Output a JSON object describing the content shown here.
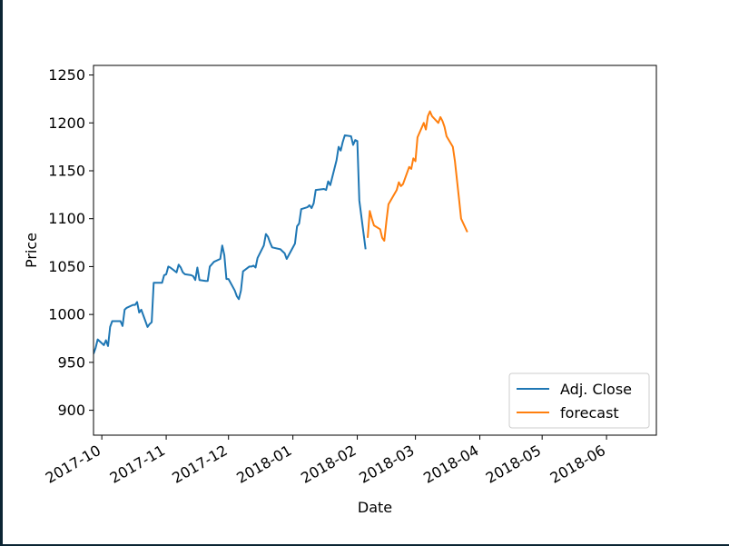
{
  "chart_data": {
    "type": "line",
    "xlabel": "Date",
    "ylabel": "Price",
    "ylim": [
      874,
      1260
    ],
    "xlim": [
      "2017-09-27",
      "2018-06-25"
    ],
    "grid": false,
    "legend_position": "lower right",
    "y_ticks": [
      900,
      950,
      1000,
      1050,
      1100,
      1150,
      1200,
      1250
    ],
    "x_ticks": [
      "2017-10",
      "2017-11",
      "2017-12",
      "2018-01",
      "2018-02",
      "2018-03",
      "2018-04",
      "2018-05",
      "2018-06"
    ],
    "x_tick_dates": [
      "2017-10-01",
      "2017-11-01",
      "2017-12-01",
      "2018-01-01",
      "2018-02-01",
      "2018-03-01",
      "2018-04-01",
      "2018-05-01",
      "2018-06-01"
    ],
    "series": [
      {
        "name": "Adj. Close",
        "color": "#1f77b4",
        "x": [
          "2017-09-27",
          "2017-09-28",
          "2017-09-29",
          "2017-10-02",
          "2017-10-03",
          "2017-10-04",
          "2017-10-05",
          "2017-10-06",
          "2017-10-09",
          "2017-10-10",
          "2017-10-11",
          "2017-10-12",
          "2017-10-13",
          "2017-10-16",
          "2017-10-17",
          "2017-10-18",
          "2017-10-19",
          "2017-10-20",
          "2017-10-23",
          "2017-10-24",
          "2017-10-25",
          "2017-10-26",
          "2017-10-27",
          "2017-10-30",
          "2017-10-31",
          "2017-11-01",
          "2017-11-02",
          "2017-11-03",
          "2017-11-06",
          "2017-11-07",
          "2017-11-08",
          "2017-11-09",
          "2017-11-10",
          "2017-11-13",
          "2017-11-14",
          "2017-11-15",
          "2017-11-16",
          "2017-11-17",
          "2017-11-20",
          "2017-11-21",
          "2017-11-22",
          "2017-11-24",
          "2017-11-27",
          "2017-11-28",
          "2017-11-29",
          "2017-11-30",
          "2017-12-01",
          "2017-12-04",
          "2017-12-05",
          "2017-12-06",
          "2017-12-07",
          "2017-12-08",
          "2017-12-11",
          "2017-12-12",
          "2017-12-13",
          "2017-12-14",
          "2017-12-15",
          "2017-12-18",
          "2017-12-19",
          "2017-12-20",
          "2017-12-21",
          "2017-12-22",
          "2017-12-26",
          "2017-12-27",
          "2017-12-28",
          "2017-12-29",
          "2018-01-02",
          "2018-01-03",
          "2018-01-04",
          "2018-01-05",
          "2018-01-08",
          "2018-01-09",
          "2018-01-10",
          "2018-01-11",
          "2018-01-12",
          "2018-01-16",
          "2018-01-17",
          "2018-01-18",
          "2018-01-19",
          "2018-01-22",
          "2018-01-23",
          "2018-01-24",
          "2018-01-25",
          "2018-01-26",
          "2018-01-29",
          "2018-01-30",
          "2018-01-31",
          "2018-02-01",
          "2018-02-02",
          "2018-02-05"
        ],
        "y": [
          959,
          965,
          974,
          968,
          973,
          967,
          987,
          993,
          993,
          993,
          988,
          1005,
          1007,
          1010,
          1010,
          1013,
          1002,
          1005,
          987,
          990,
          992,
          1033,
          1033,
          1033,
          1041,
          1042,
          1050,
          1049,
          1044,
          1052,
          1049,
          1044,
          1042,
          1041,
          1040,
          1036,
          1049,
          1036,
          1035,
          1035,
          1050,
          1055,
          1058,
          1072,
          1062,
          1037,
          1037,
          1025,
          1019,
          1016,
          1025,
          1045,
          1050,
          1050,
          1051,
          1049,
          1059,
          1072,
          1084,
          1081,
          1075,
          1070,
          1068,
          1066,
          1064,
          1058,
          1074,
          1092,
          1095,
          1110,
          1112,
          1114,
          1111,
          1116,
          1130,
          1131,
          1130,
          1139,
          1135,
          1161,
          1175,
          1171,
          1180,
          1187,
          1186,
          1177,
          1182,
          1181,
          1119,
          1068
        ]
      },
      {
        "name": "forecast",
        "color": "#ff7f0e",
        "x": [
          "2018-02-06",
          "2018-02-07",
          "2018-02-08",
          "2018-02-09",
          "2018-02-12",
          "2018-02-13",
          "2018-02-14",
          "2018-02-15",
          "2018-02-16",
          "2018-02-20",
          "2018-02-21",
          "2018-02-22",
          "2018-02-23",
          "2018-02-26",
          "2018-02-27",
          "2018-02-28",
          "2018-03-01",
          "2018-03-02",
          "2018-03-05",
          "2018-03-06",
          "2018-03-07",
          "2018-03-08",
          "2018-03-09",
          "2018-03-12",
          "2018-03-13",
          "2018-03-14",
          "2018-03-15",
          "2018-03-16",
          "2018-03-19",
          "2018-03-20",
          "2018-03-21",
          "2018-03-22",
          "2018-03-23",
          "2018-03-26"
        ],
        "y": [
          1080,
          1108,
          1100,
          1093,
          1089,
          1080,
          1077,
          1097,
          1115,
          1130,
          1138,
          1134,
          1136,
          1154,
          1152,
          1163,
          1160,
          1185,
          1200,
          1193,
          1207,
          1212,
          1207,
          1200,
          1206,
          1202,
          1196,
          1186,
          1175,
          1160,
          1140,
          1120,
          1100,
          1086
        ]
      }
    ]
  }
}
